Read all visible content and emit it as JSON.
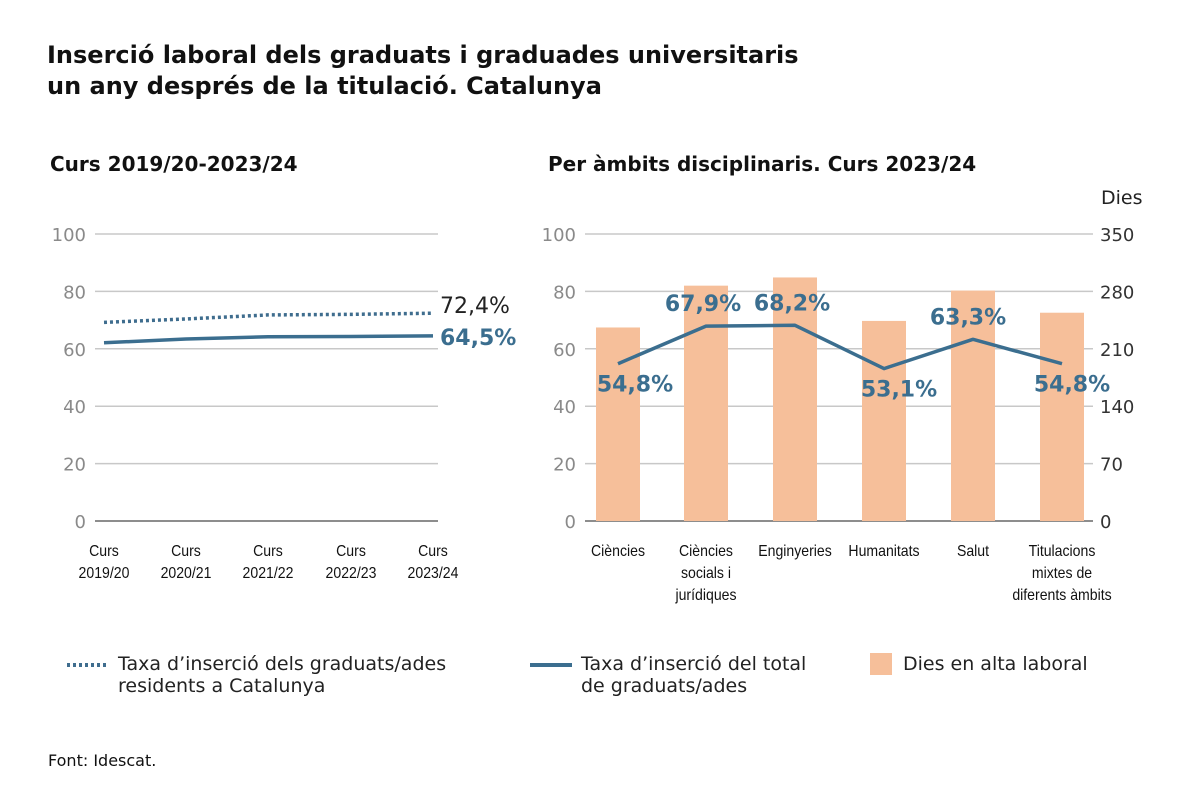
{
  "title_lines": [
    "Inserció laboral dels graduats i graduades universitaris",
    "un any després de la titulació. Catalunya"
  ],
  "source": "Font: Idescat.",
  "colors": {
    "dotted": "#3f6d8e",
    "solid": "#3b6e8f",
    "bars": "#f6bf9a",
    "grid": "#c8c8c8",
    "axis_text": "#8a8a8a"
  },
  "chart_data": [
    {
      "type": "line",
      "title": "Curs 2019/20-2023/24",
      "categories": [
        [
          "Curs",
          "2019/20"
        ],
        [
          "Curs",
          "2020/21"
        ],
        [
          "Curs",
          "2021/22"
        ],
        [
          "Curs",
          "2022/23"
        ],
        [
          "Curs",
          "2023/24"
        ]
      ],
      "ylim": [
        0,
        100
      ],
      "yticks": [
        0,
        20,
        40,
        60,
        80,
        100
      ],
      "grid": true,
      "series": [
        {
          "name": [
            "Taxa d’inserció dels graduats/ades",
            "residents a Catalunya"
          ],
          "style": "dotted",
          "values": [
            69.2,
            70.4,
            71.8,
            72.0,
            72.4
          ],
          "end_label": "72,4%"
        },
        {
          "name": [
            "Taxa d’inserció del total",
            "de graduats/ades"
          ],
          "style": "solid",
          "values": [
            62.1,
            63.4,
            64.2,
            64.3,
            64.5
          ],
          "end_label": "64,5%"
        }
      ]
    },
    {
      "type": "bar",
      "title": "Per àmbits disciplinaris. Curs 2023/24",
      "categories": [
        [
          "Ciències"
        ],
        [
          "Ciències",
          "socials i",
          "jurídiques"
        ],
        [
          "Enginyeries"
        ],
        [
          "Humanitats"
        ],
        [
          "Salut"
        ],
        [
          "Titulacions",
          "mixtes de",
          "diferents àmbits"
        ]
      ],
      "ylim_left": [
        0,
        100
      ],
      "yticks_left": [
        0,
        20,
        40,
        60,
        80,
        100
      ],
      "ylim_right": [
        0,
        350
      ],
      "yticks_right": [
        0,
        70,
        140,
        210,
        280,
        350
      ],
      "ylabel_right": "Dies",
      "grid": true,
      "bars": {
        "name": "Dies en alta laboral",
        "axis": "right",
        "values": [
          236,
          287,
          297,
          244,
          281,
          254
        ]
      },
      "line": {
        "name": [
          "Taxa d’inserció del total",
          "de graduats/ades"
        ],
        "axis": "left",
        "values": [
          54.8,
          67.9,
          68.2,
          53.1,
          63.3,
          54.8
        ],
        "labels": [
          "54,8%",
          "67,9%",
          "68,2%",
          "53,1%",
          "63,3%",
          "54,8%"
        ]
      }
    }
  ]
}
